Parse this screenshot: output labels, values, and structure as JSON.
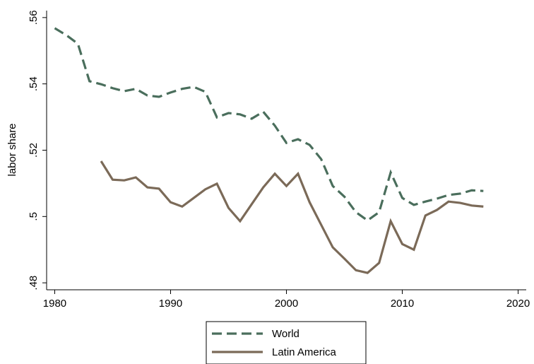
{
  "chart_data": {
    "type": "line",
    "y_label": "labor share",
    "x": [
      1980,
      1981,
      1982,
      1983,
      1984,
      1985,
      1986,
      1987,
      1988,
      1989,
      1990,
      1991,
      1992,
      1993,
      1994,
      1995,
      1996,
      1997,
      1998,
      1999,
      2000,
      2001,
      2002,
      2003,
      2004,
      2005,
      2006,
      2007,
      2008,
      2009,
      2010,
      2011,
      2012,
      2013,
      2014,
      2015,
      2016,
      2017
    ],
    "series": [
      {
        "name": "World",
        "color": "#4a6e5c",
        "dash": true,
        "values": [
          0.5568,
          0.5547,
          0.5521,
          0.5408,
          0.5399,
          0.5387,
          0.5378,
          0.5385,
          0.5365,
          0.5361,
          0.5374,
          0.5385,
          0.5391,
          0.5376,
          0.5299,
          0.5312,
          0.5308,
          0.5295,
          0.5316,
          0.5274,
          0.5222,
          0.5233,
          0.5216,
          0.5173,
          0.5092,
          0.506,
          0.5013,
          0.4988,
          0.5013,
          0.5133,
          0.5056,
          0.5035,
          0.5045,
          0.5054,
          0.5065,
          0.5069,
          0.5079,
          0.5077
        ]
      },
      {
        "name": "Latin America",
        "color": "#7b6a58",
        "dash": false,
        "values": [
          null,
          null,
          null,
          null,
          0.5167,
          0.5111,
          0.5109,
          0.5118,
          0.5088,
          0.5084,
          0.5043,
          0.503,
          0.5056,
          0.5082,
          0.5099,
          0.5026,
          0.4986,
          0.5037,
          0.5088,
          0.5129,
          0.5092,
          0.5129,
          0.5043,
          0.4975,
          0.4907,
          0.4873,
          0.4838,
          0.483,
          0.486,
          0.4986,
          0.4917,
          0.49,
          0.5003,
          0.502,
          0.5045,
          0.5041,
          0.5033,
          0.503
        ]
      }
    ],
    "xlim": [
      1979.3,
      2020.7
    ],
    "ylim": [
      0.4779,
      0.5621
    ],
    "xticks": [
      1980,
      1990,
      2000,
      2010,
      2020
    ],
    "yticks": [
      {
        "value": 0.48,
        "label": ".48"
      },
      {
        "value": 0.5,
        "label": ".5"
      },
      {
        "value": 0.52,
        "label": ".52"
      },
      {
        "value": 0.54,
        "label": ".54"
      },
      {
        "value": 0.56,
        "label": ".56"
      }
    ]
  }
}
